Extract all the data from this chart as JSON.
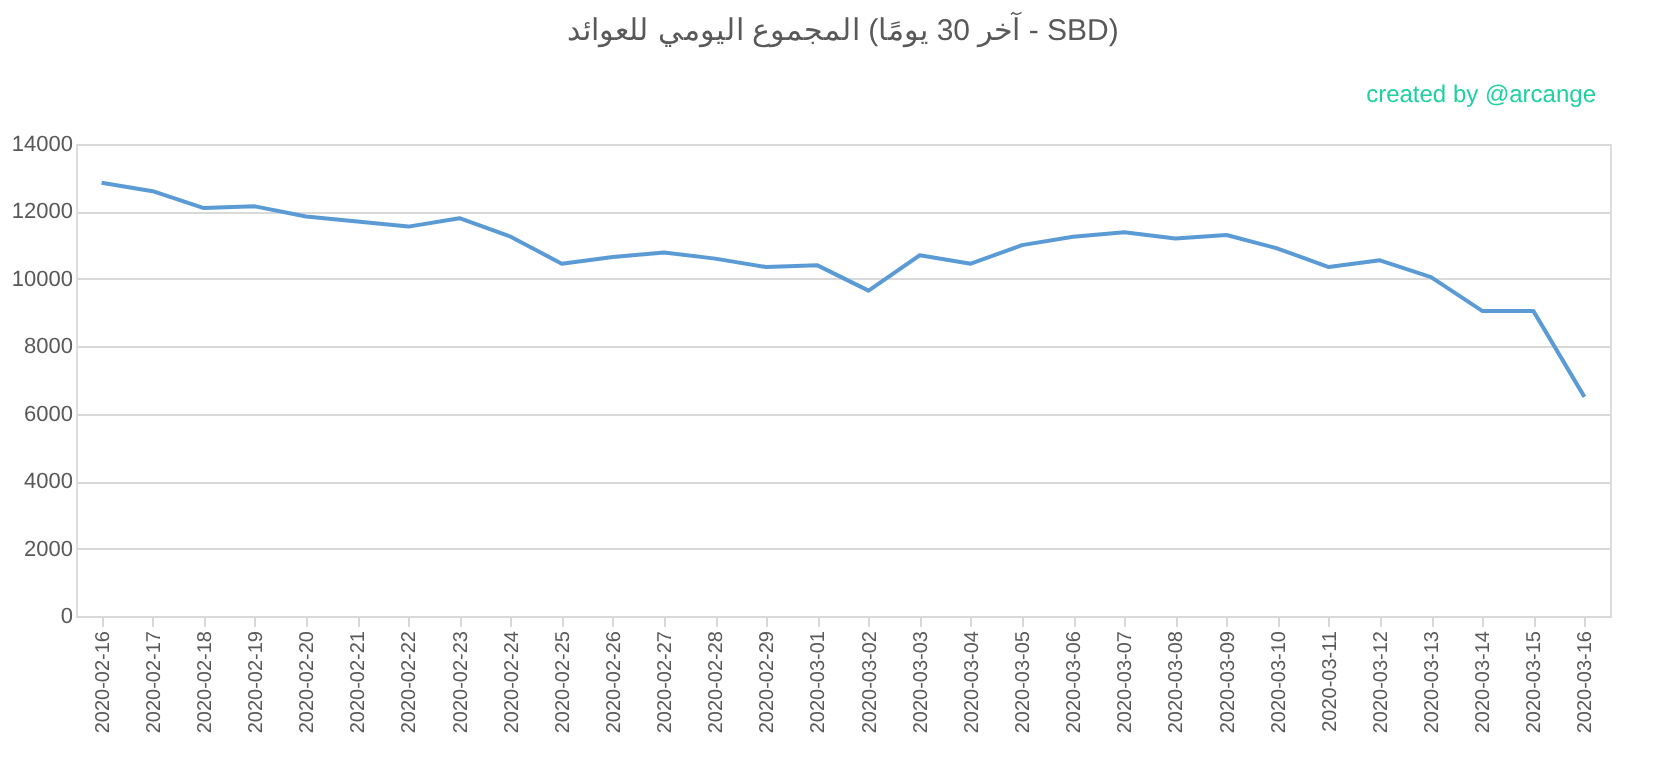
{
  "chart_data": {
    "type": "line",
    "title": "المجموع اليومي للعوائد (آخر 30 يومًا - SBD)",
    "annotations": [
      "created by @arcange"
    ],
    "categories": [
      "2020-02-16",
      "2020-02-17",
      "2020-02-18",
      "2020-02-19",
      "2020-02-20",
      "2020-02-21",
      "2020-02-22",
      "2020-02-23",
      "2020-02-24",
      "2020-02-25",
      "2020-02-26",
      "2020-02-27",
      "2020-02-28",
      "2020-02-29",
      "2020-03-01",
      "2020-03-02",
      "2020-03-03",
      "2020-03-04",
      "2020-03-05",
      "2020-03-06",
      "2020-03-07",
      "2020-03-08",
      "2020-03-09",
      "2020-03-10",
      "2020-03-11",
      "2020-03-12",
      "2020-03-13",
      "2020-03-14",
      "2020-03-15",
      "2020-03-16"
    ],
    "series": [
      {
        "color": "#5b9bd5",
        "values": [
          12850,
          12600,
          12100,
          12150,
          11850,
          11700,
          11550,
          11800,
          11250,
          10450,
          10650,
          10780,
          10600,
          10350,
          10400,
          9650,
          10700,
          10450,
          11000,
          11250,
          11380,
          11200,
          11300,
          10900,
          10350,
          10550,
          10050,
          9050,
          9050,
          6500
        ]
      }
    ],
    "ylim": [
      0,
      14000
    ],
    "yticks": [
      0,
      2000,
      4000,
      6000,
      8000,
      10000,
      12000,
      14000
    ],
    "grid": "y",
    "marker": "none",
    "line_style": "solid"
  }
}
